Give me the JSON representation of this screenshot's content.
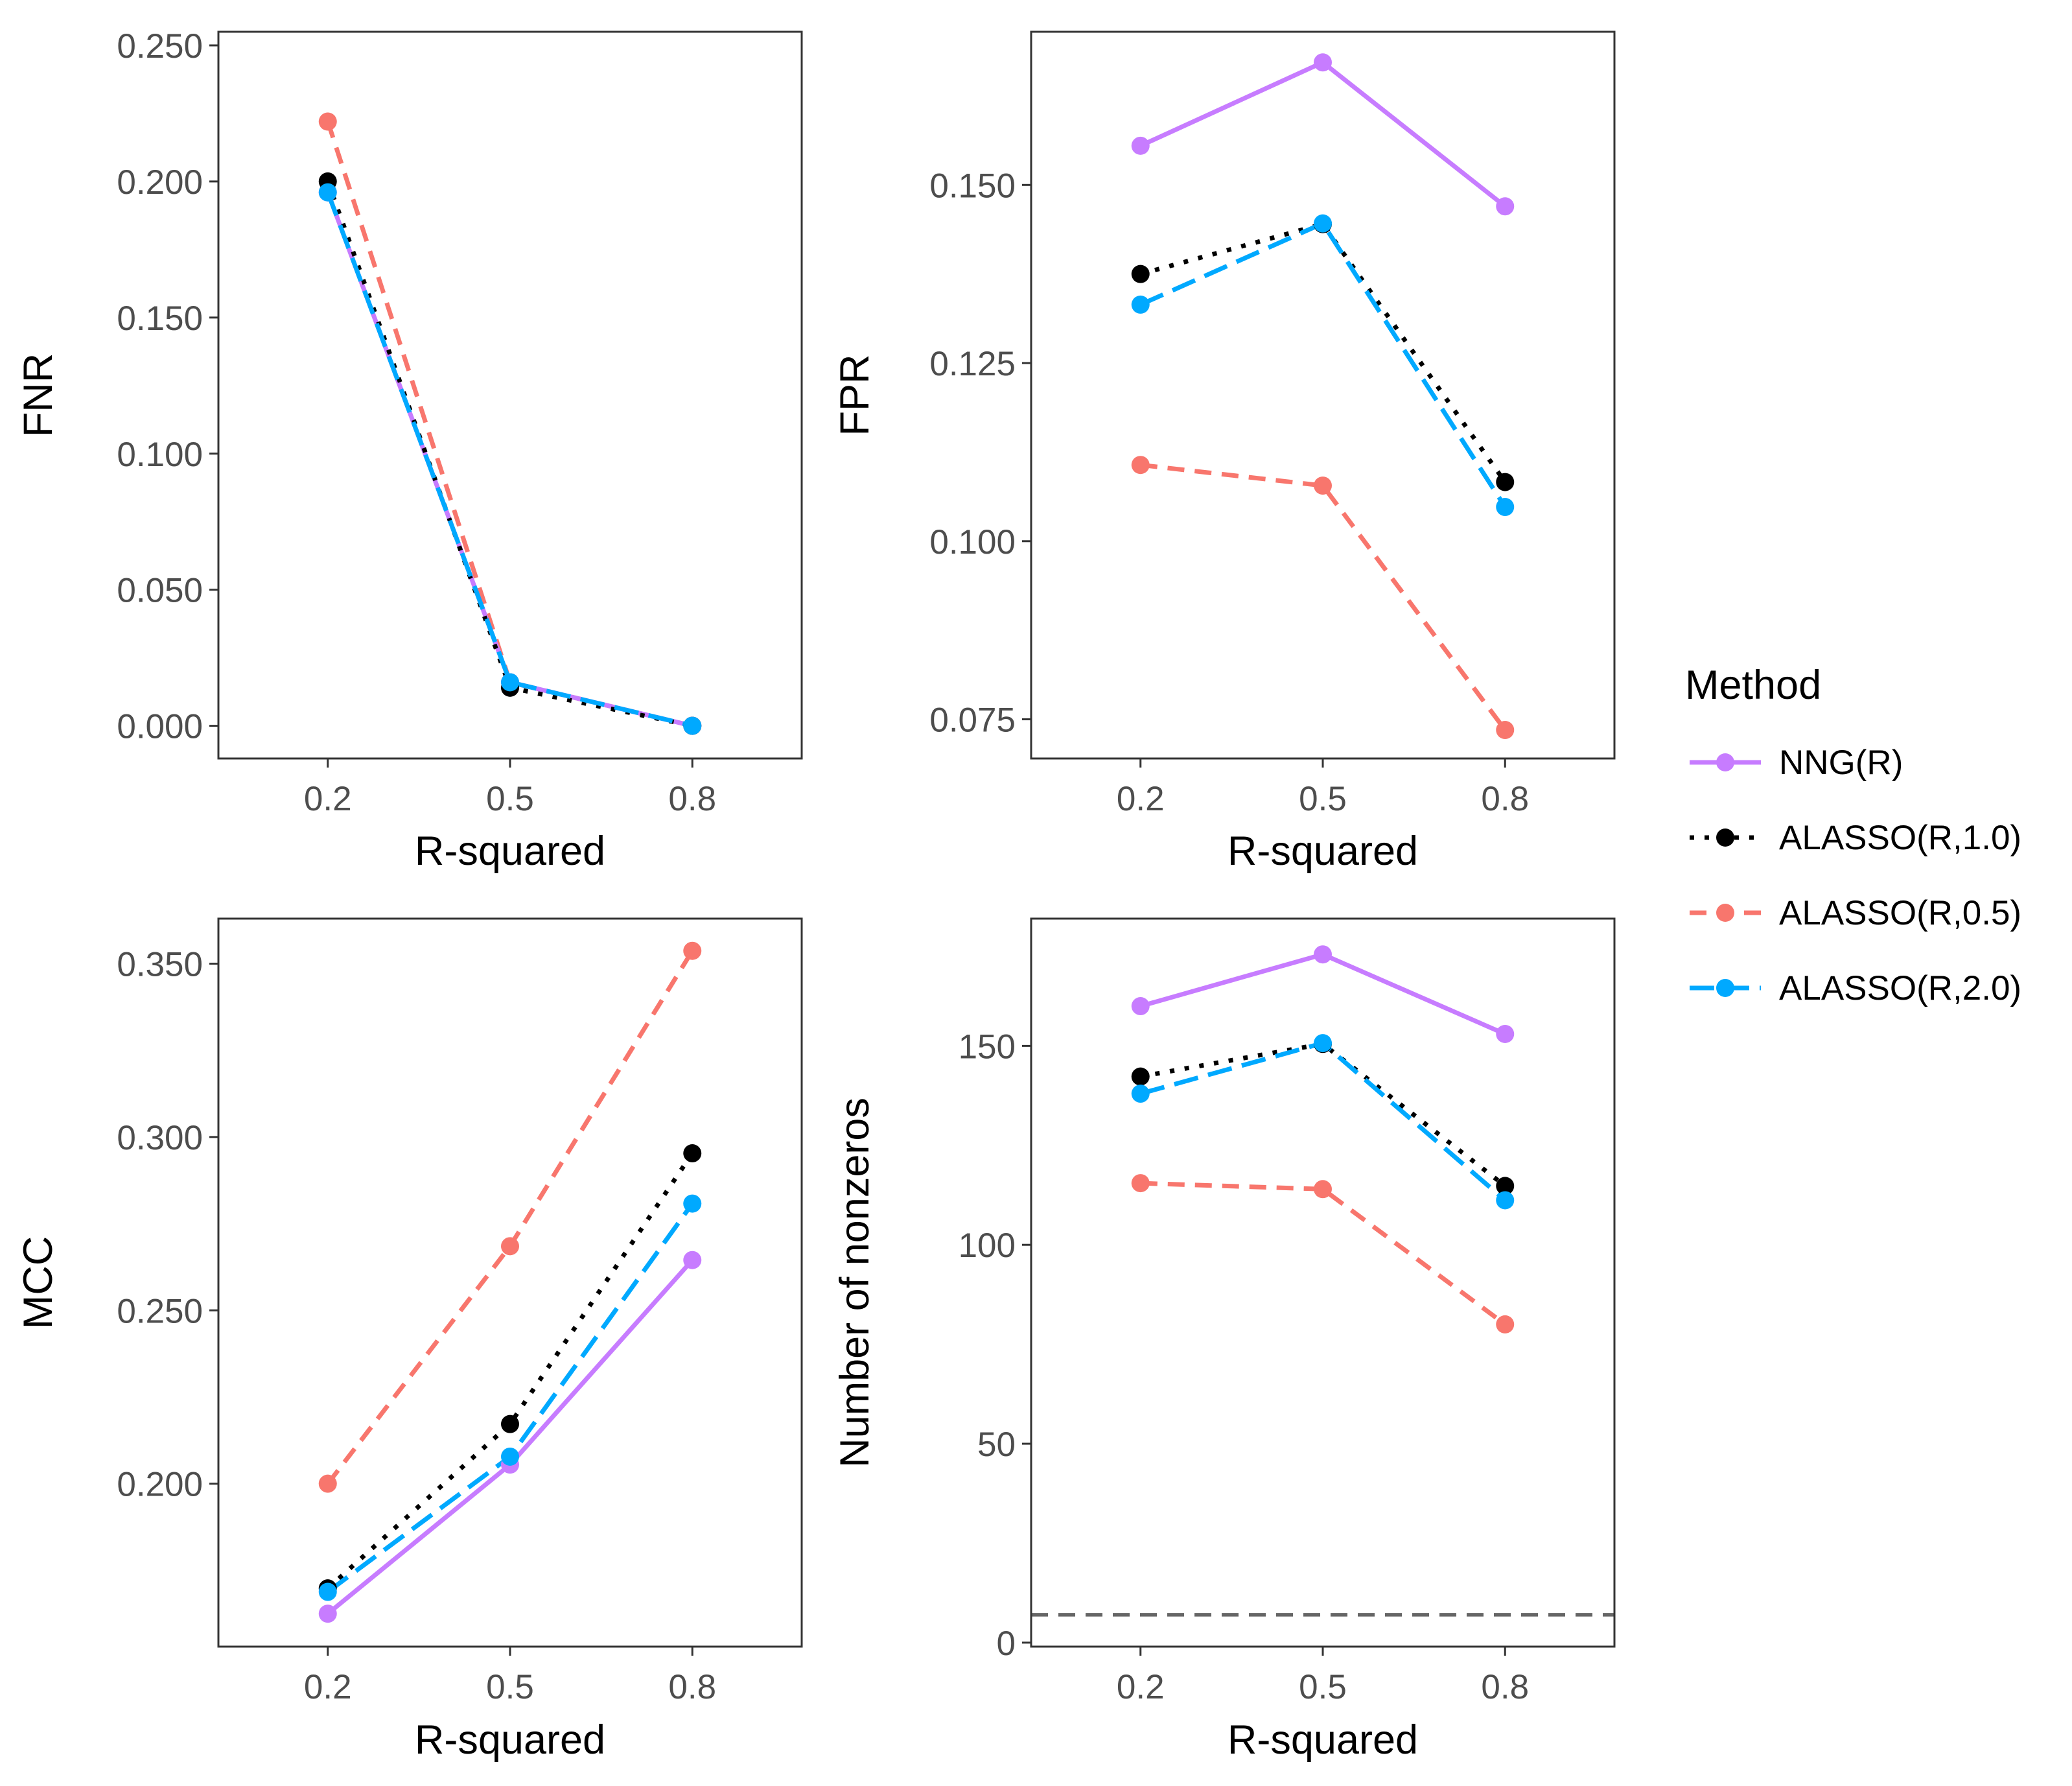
{
  "methods": [
    {
      "name": "NNG(R)",
      "color": "#C77CFF",
      "dash": "solid"
    },
    {
      "name": "ALASSO(R,1.0)",
      "color": "#000000",
      "dash": "dotted"
    },
    {
      "name": "ALASSO(R,0.5)",
      "color": "#F8766D",
      "dash": "dashed"
    },
    {
      "name": "ALASSO(R,2.0)",
      "color": "#00A9FF",
      "dash": "longdash"
    }
  ],
  "legend": {
    "title": "Method",
    "labels": [
      "NNG(R)",
      "ALASSO(R,1.0)",
      "ALASSO(R,0.5)",
      "ALASSO(R,2.0)"
    ]
  },
  "chart_data": [
    {
      "type": "line",
      "xlabel": "R-squared",
      "ylabel": "FNR",
      "x": [
        0.2,
        0.5,
        0.8
      ],
      "x_tick_labels": [
        "0.2",
        "0.5",
        "0.8"
      ],
      "ylim": [
        -0.012,
        0.255
      ],
      "y_ticks": [
        0.0,
        0.05,
        0.1,
        0.15,
        0.2,
        0.25
      ],
      "y_tick_labels": [
        "0.000",
        "0.050",
        "0.100",
        "0.150",
        "0.200",
        "0.250"
      ],
      "series": [
        {
          "name": "NNG(R)",
          "values": [
            0.196,
            0.016,
            0.0
          ]
        },
        {
          "name": "ALASSO(R,1.0)",
          "values": [
            0.2,
            0.014,
            0.0
          ]
        },
        {
          "name": "ALASSO(R,0.5)",
          "values": [
            0.222,
            0.016,
            0.0
          ]
        },
        {
          "name": "ALASSO(R,2.0)",
          "values": [
            0.196,
            0.016,
            0.0
          ]
        }
      ]
    },
    {
      "type": "line",
      "xlabel": "R-squared",
      "ylabel": "FPR",
      "x": [
        0.2,
        0.5,
        0.8
      ],
      "x_tick_labels": [
        "0.2",
        "0.5",
        "0.8"
      ],
      "ylim": [
        0.0695,
        0.1715
      ],
      "y_ticks": [
        0.075,
        0.1,
        0.125,
        0.15
      ],
      "y_tick_labels": [
        "0.075",
        "0.100",
        "0.125",
        "0.150"
      ],
      "series": [
        {
          "name": "NNG(R)",
          "values": [
            0.1555,
            0.1672,
            0.147
          ]
        },
        {
          "name": "ALASSO(R,1.0)",
          "values": [
            0.1375,
            0.1445,
            0.1083
          ]
        },
        {
          "name": "ALASSO(R,0.5)",
          "values": [
            0.1107,
            0.1078,
            0.0735
          ]
        },
        {
          "name": "ALASSO(R,2.0)",
          "values": [
            0.1332,
            0.1446,
            0.1048
          ]
        }
      ]
    },
    {
      "type": "line",
      "xlabel": "R-squared",
      "ylabel": "MCC",
      "x": [
        0.2,
        0.5,
        0.8
      ],
      "x_tick_labels": [
        "0.2",
        "0.5",
        "0.8"
      ],
      "ylim": [
        0.153,
        0.363
      ],
      "y_ticks": [
        0.2,
        0.25,
        0.3,
        0.35
      ],
      "y_tick_labels": [
        "0.200",
        "0.250",
        "0.300",
        "0.350"
      ],
      "series": [
        {
          "name": "NNG(R)",
          "values": [
            0.1625,
            0.2055,
            0.2645
          ]
        },
        {
          "name": "ALASSO(R,1.0)",
          "values": [
            0.1698,
            0.2172,
            0.2953
          ]
        },
        {
          "name": "ALASSO(R,0.5)",
          "values": [
            0.2,
            0.2685,
            0.3537
          ]
        },
        {
          "name": "ALASSO(R,2.0)",
          "values": [
            0.1688,
            0.2078,
            0.2808
          ]
        }
      ]
    },
    {
      "type": "line",
      "xlabel": "R-squared",
      "ylabel": "Number of nonzeros",
      "x": [
        0.2,
        0.5,
        0.8
      ],
      "x_tick_labels": [
        "0.2",
        "0.5",
        "0.8"
      ],
      "ylim": [
        -1,
        182
      ],
      "y_ticks": [
        0,
        50,
        100,
        150
      ],
      "y_tick_labels": [
        "0",
        "50",
        "100",
        "150"
      ],
      "reference_line": 7,
      "series": [
        {
          "name": "NNG(R)",
          "values": [
            160,
            173,
            153
          ]
        },
        {
          "name": "ALASSO(R,1.0)",
          "values": [
            142.3,
            150.5,
            114.8
          ]
        },
        {
          "name": "ALASSO(R,0.5)",
          "values": [
            115.5,
            114,
            80
          ]
        },
        {
          "name": "ALASSO(R,2.0)",
          "values": [
            138,
            150.7,
            111.2
          ]
        }
      ]
    }
  ]
}
